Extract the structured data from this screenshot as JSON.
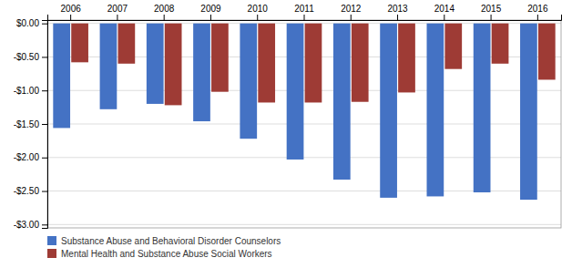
{
  "chart_data": {
    "type": "bar",
    "categories": [
      "2006",
      "2007",
      "2008",
      "2009",
      "2010",
      "2011",
      "2012",
      "2013",
      "2014",
      "2015",
      "2016"
    ],
    "series": [
      {
        "name": "Substance Abuse and Behavioral Disorder Counselors",
        "color": "#4472C4",
        "values": [
          -1.56,
          -1.28,
          -1.2,
          -1.46,
          -1.72,
          -2.03,
          -2.33,
          -2.6,
          -2.58,
          -2.52,
          -2.63
        ]
      },
      {
        "name": "Mental Health and Substance Abuse Social Workers",
        "color": "#9E3B35",
        "values": [
          -0.58,
          -0.6,
          -1.22,
          -1.02,
          -1.18,
          -1.18,
          -1.17,
          -1.03,
          -0.68,
          -0.6,
          -0.84
        ]
      }
    ],
    "ylim": [
      -3.05,
      0.05
    ],
    "yticks": [
      {
        "value": 0.0,
        "label": "$0.00"
      },
      {
        "value": -0.5,
        "label": "-$0.50"
      },
      {
        "value": -1.0,
        "label": "-$1.00"
      },
      {
        "value": -1.5,
        "label": "-$1.50"
      },
      {
        "value": -2.0,
        "label": "-$2.00"
      },
      {
        "value": -2.5,
        "label": "-$2.50"
      },
      {
        "value": -3.0,
        "label": "-$3.00"
      }
    ],
    "grid": true,
    "legend": "bottom"
  }
}
